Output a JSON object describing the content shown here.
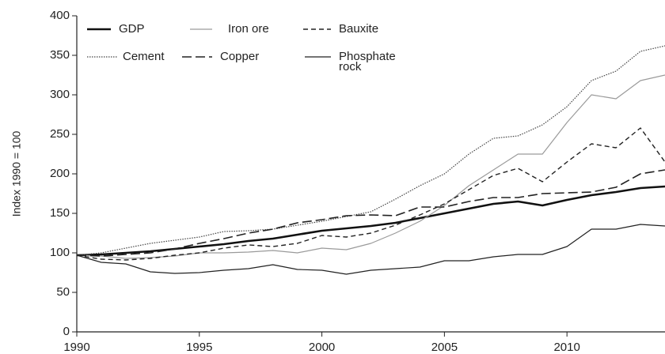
{
  "chart_data": {
    "type": "line",
    "y_label": "Index 1990 = 100",
    "x": [
      1990,
      1991,
      1992,
      1993,
      1994,
      1995,
      1996,
      1997,
      1998,
      1999,
      2000,
      2001,
      2002,
      2003,
      2004,
      2005,
      2006,
      2007,
      2008,
      2009,
      2010,
      2011,
      2012,
      2013,
      2014
    ],
    "xlim": [
      1990,
      2014
    ],
    "xticks": [
      1990,
      1995,
      2000,
      2005,
      2010
    ],
    "ylim": [
      0,
      400
    ],
    "yticks": [
      0,
      50,
      100,
      150,
      200,
      250,
      300,
      350,
      400
    ],
    "grid": false,
    "series": [
      {
        "name": "GDP",
        "color": "#111111",
        "line_style": "thick-solid",
        "values": [
          97,
          98,
          100,
          102,
          105,
          108,
          111,
          115,
          118,
          123,
          128,
          131,
          134,
          138,
          144,
          150,
          156,
          162,
          165,
          160,
          167,
          173,
          177,
          182,
          184
        ]
      },
      {
        "name": "Iron ore",
        "color": "#9a9a9a",
        "line_style": "solid",
        "values": [
          97,
          96,
          93,
          94,
          96,
          100,
          100,
          101,
          103,
          100,
          106,
          104,
          112,
          125,
          140,
          160,
          185,
          205,
          225,
          225,
          265,
          300,
          295,
          318,
          325
        ]
      },
      {
        "name": "Bauxite",
        "color": "#222222",
        "line_style": "dashed",
        "values": [
          97,
          92,
          91,
          93,
          97,
          100,
          106,
          110,
          108,
          112,
          122,
          120,
          125,
          135,
          148,
          162,
          180,
          198,
          207,
          190,
          215,
          238,
          233,
          258,
          215
        ]
      },
      {
        "name": "Cement",
        "color": "#444444",
        "line_style": "dotted",
        "values": [
          97,
          100,
          106,
          112,
          116,
          120,
          127,
          128,
          130,
          135,
          140,
          146,
          152,
          168,
          185,
          200,
          225,
          245,
          248,
          262,
          285,
          318,
          330,
          355,
          362
        ]
      },
      {
        "name": "Copper",
        "color": "#222222",
        "line_style": "long-dashed",
        "values": [
          97,
          96,
          98,
          100,
          105,
          112,
          118,
          125,
          130,
          138,
          142,
          147,
          148,
          147,
          158,
          158,
          165,
          170,
          170,
          175,
          176,
          177,
          183,
          200,
          205
        ]
      },
      {
        "name": "Phosphate rock",
        "color": "#222222",
        "line_style": "solid",
        "values": [
          97,
          88,
          86,
          76,
          74,
          75,
          78,
          80,
          85,
          79,
          78,
          73,
          78,
          80,
          82,
          90,
          90,
          95,
          98,
          98,
          108,
          130,
          130,
          136,
          134
        ]
      }
    ]
  }
}
